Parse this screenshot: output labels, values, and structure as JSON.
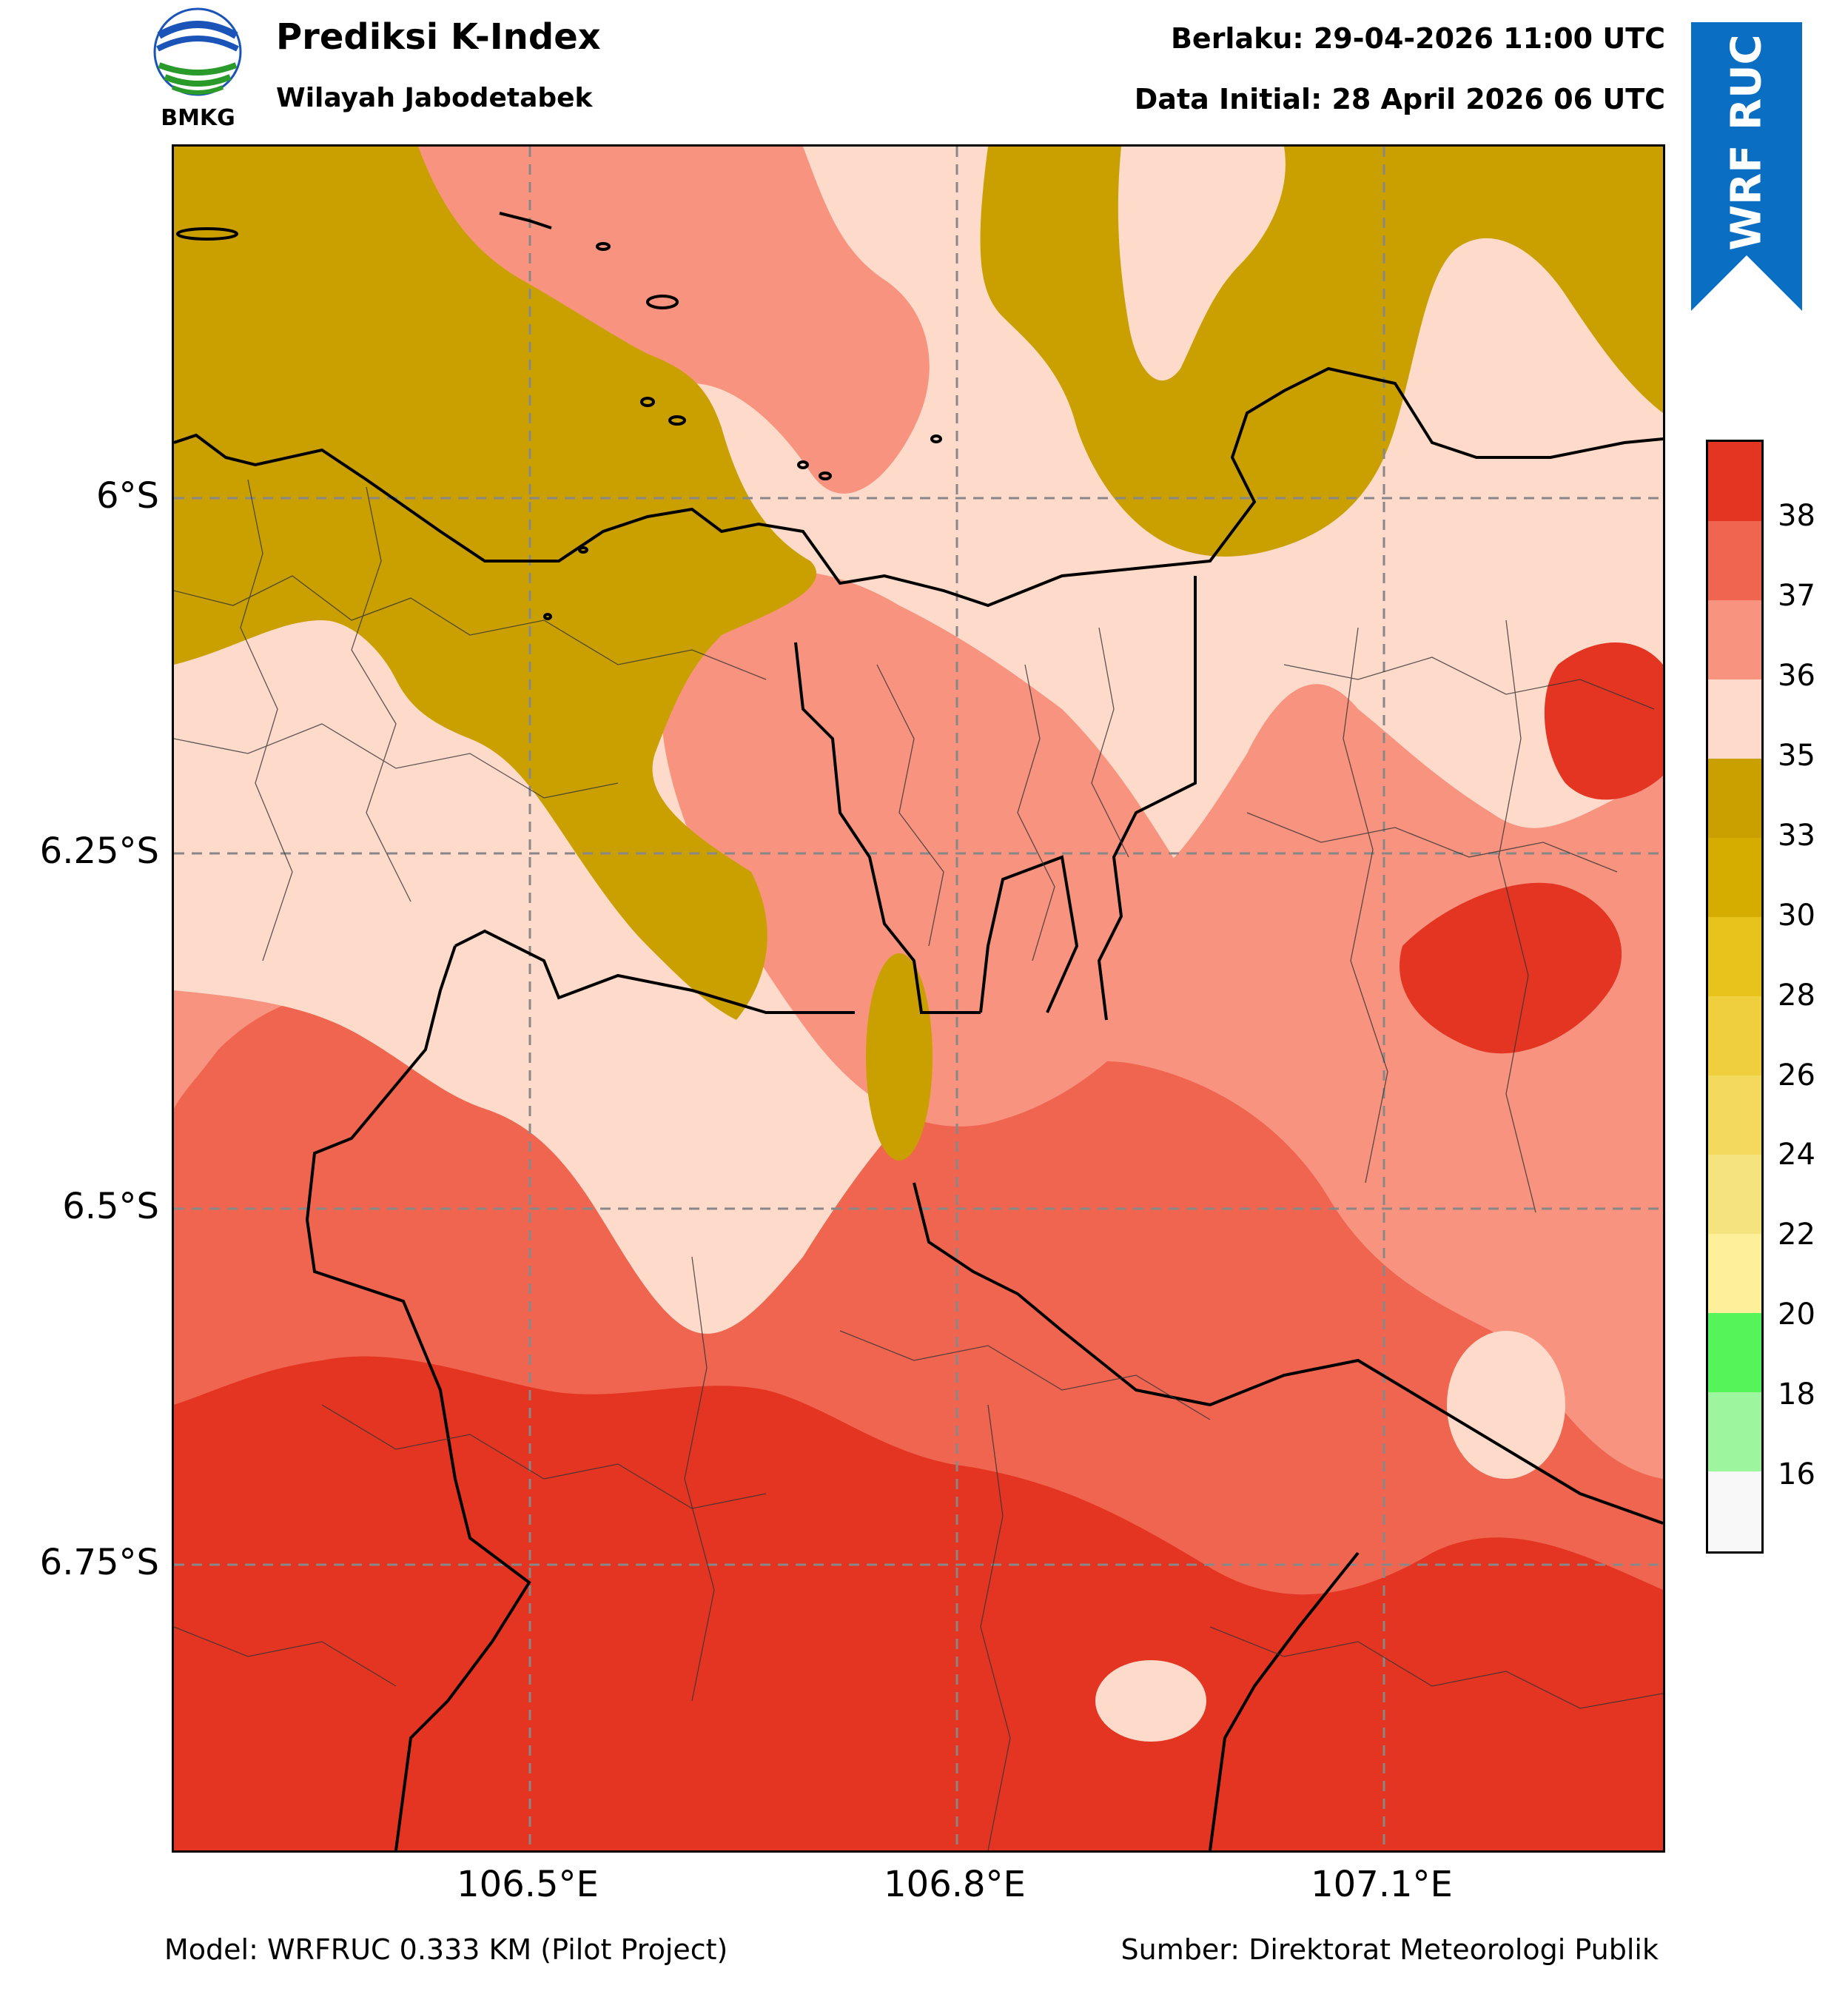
{
  "header": {
    "logo_text": "BMKG",
    "title": "Prediksi K-Index",
    "region": "Wilayah Jabodetabek",
    "valid_time": "Berlaku: 29-04-2026 11:00 UTC",
    "initial_time": "Data Initial: 28 April 2026 06 UTC",
    "ribbon": "WRF RUC"
  },
  "map": {
    "lat_labels": [
      "6°S",
      "6.25°S",
      "6.5°S",
      "6.75°S"
    ],
    "lon_labels": [
      "106.5°E",
      "106.8°E",
      "107.1°E"
    ],
    "place_labels": []
  },
  "colorbar": {
    "ticks": [
      "38",
      "37",
      "36",
      "35",
      "33",
      "30",
      "28",
      "26",
      "24",
      "22",
      "20",
      "18",
      "16"
    ],
    "colors": [
      "#e33522",
      "#ef6550",
      "#f7937e",
      "#fddaca",
      "#c9a000",
      "#d4ad00",
      "#e8c31b",
      "#f0cf3e",
      "#f3da5e",
      "#f5e37f",
      "#faeaa0",
      "#fef09a",
      "#55f55a",
      "#9df59d",
      "#f8f8f8"
    ]
  },
  "footer": {
    "model": "Model: WRFRUC 0.333 KM (Pilot Project)",
    "source": "Sumber: Direktorat Meteorologi Publik"
  },
  "style": {
    "ribbon_color": "#0a6fc2",
    "k_high": "#e33522",
    "k_mid": "#ef6550",
    "k_lowmid": "#f7937e",
    "k_light": "#fddaca",
    "k_olive": "#c9a000"
  }
}
